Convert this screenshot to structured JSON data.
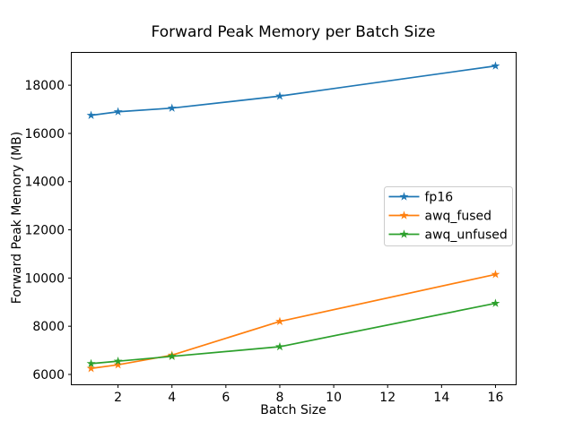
{
  "chart_data": {
    "type": "line",
    "title": "Forward Peak Memory per Batch Size",
    "xlabel": "Batch Size",
    "ylabel": "Forward Peak Memory (MB)",
    "x": [
      1,
      2,
      4,
      8,
      16
    ],
    "series": [
      {
        "name": "fp16",
        "color": "#1f77b4",
        "values": [
          16750,
          16900,
          17050,
          17550,
          18800
        ]
      },
      {
        "name": "awq_fused",
        "color": "#ff7f0e",
        "values": [
          6250,
          6400,
          6800,
          8200,
          10150
        ]
      },
      {
        "name": "awq_unfused",
        "color": "#2ca02c",
        "values": [
          6450,
          6550,
          6750,
          7150,
          8950
        ]
      }
    ],
    "marker": "star",
    "xticks": [
      2,
      4,
      6,
      8,
      10,
      12,
      14,
      16
    ],
    "yticks": [
      6000,
      8000,
      10000,
      12000,
      14000,
      16000,
      18000
    ],
    "xlim": [
      0.25,
      16.75
    ],
    "ylim": [
      5590,
      19380
    ],
    "grid": false,
    "legend_position": "center-right",
    "background": "#ffffff",
    "axes_color": "#000000"
  }
}
